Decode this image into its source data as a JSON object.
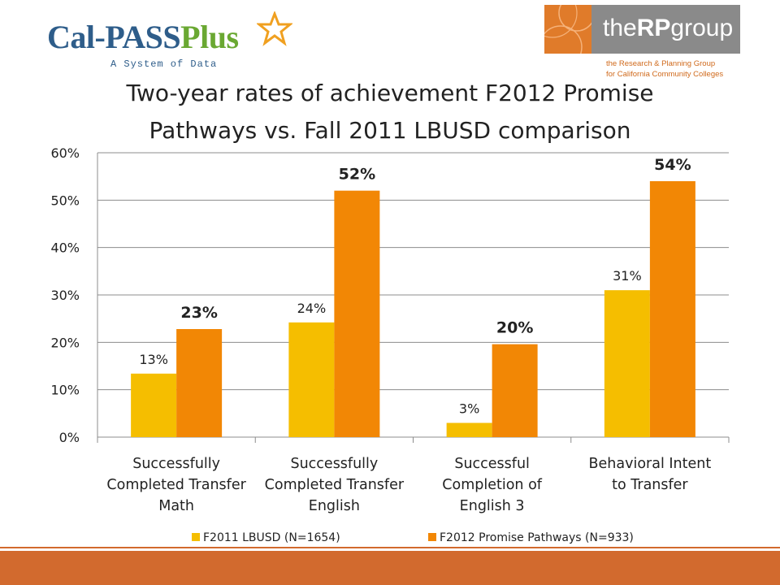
{
  "header": {
    "left_logo": {
      "name": "Cal-PASS",
      "name_plus": "Plus",
      "tagline": "A System of Data"
    },
    "right_logo": {
      "name_prefix": "the",
      "name_bold": "RP",
      "name_suffix": "group",
      "line1": "the Research & Planning Group",
      "line2": "for California Community Colleges"
    }
  },
  "chart_data": {
    "type": "bar",
    "title_line1": "Two-year rates of achievement F2012 Promise",
    "title_line2": "Pathways vs. Fall 2011 LBUSD comparison",
    "categories": [
      [
        "Successfully",
        "Completed Transfer",
        "Math"
      ],
      [
        "Successfully",
        "Completed Transfer",
        "English"
      ],
      [
        "Successful",
        "Completion of",
        "English 3"
      ],
      [
        "Behavioral Intent",
        "to Transfer"
      ]
    ],
    "series": [
      {
        "name": "F2011 LBUSD  (N=1654)",
        "color": "#f5be00",
        "values": [
          13.4,
          24.2,
          3.0,
          31.0
        ],
        "labels": [
          "13%",
          "24%",
          "3%",
          "31%"
        ],
        "label_bold": false
      },
      {
        "name": "F2012 Promise Pathways (N=933)",
        "color": "#f28705",
        "values": [
          22.8,
          52.0,
          19.6,
          54.0
        ],
        "labels": [
          "23%",
          "52%",
          "20%",
          "54%"
        ],
        "label_bold": true
      }
    ],
    "yticks": [
      "0%",
      "10%",
      "20%",
      "30%",
      "40%",
      "50%",
      "60%"
    ],
    "ylim": [
      0,
      60
    ],
    "grid": true,
    "legend_position": "bottom"
  }
}
